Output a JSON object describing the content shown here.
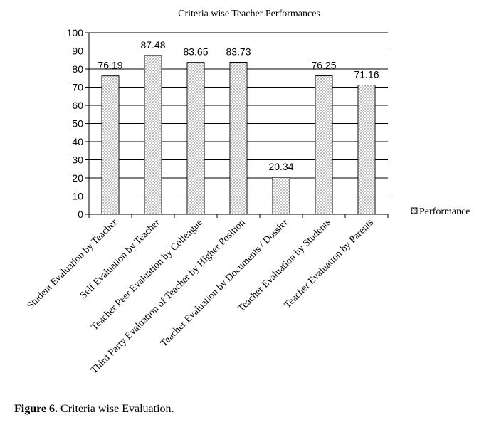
{
  "chart_data": {
    "type": "bar",
    "title": "Criteria wise Teacher Performances",
    "xlabel": "",
    "ylabel": "",
    "ylim": [
      0,
      100
    ],
    "yticks": [
      0,
      10,
      20,
      30,
      40,
      50,
      60,
      70,
      80,
      90,
      100
    ],
    "categories": [
      "Student Evaluation by Teacher",
      "Self Evaluation by Teacher",
      "Teacher Peer Evaluation by Colleague",
      "Third Party Evaluation of Teacher by Higher Position",
      "Teacher Evaluation by Documents / Dossier",
      "Teacher Evaluation by Students",
      "Teacher Evaluation by Parents"
    ],
    "series": [
      {
        "name": "Performance",
        "values": [
          76.19,
          87.48,
          83.65,
          83.73,
          20.34,
          76.25,
          71.16
        ],
        "labels": [
          "76.19",
          "87.48",
          "83.65",
          "83.73",
          "20.34",
          "76.25",
          "71.16"
        ]
      }
    ],
    "grid": true,
    "legend_position": "right",
    "colors": {
      "bar_fill": "#ffffff",
      "bar_dots": "#000000",
      "grid": "#000000"
    }
  },
  "caption": {
    "label": "Figure 6.",
    "text": " Criteria wise Evaluation."
  }
}
